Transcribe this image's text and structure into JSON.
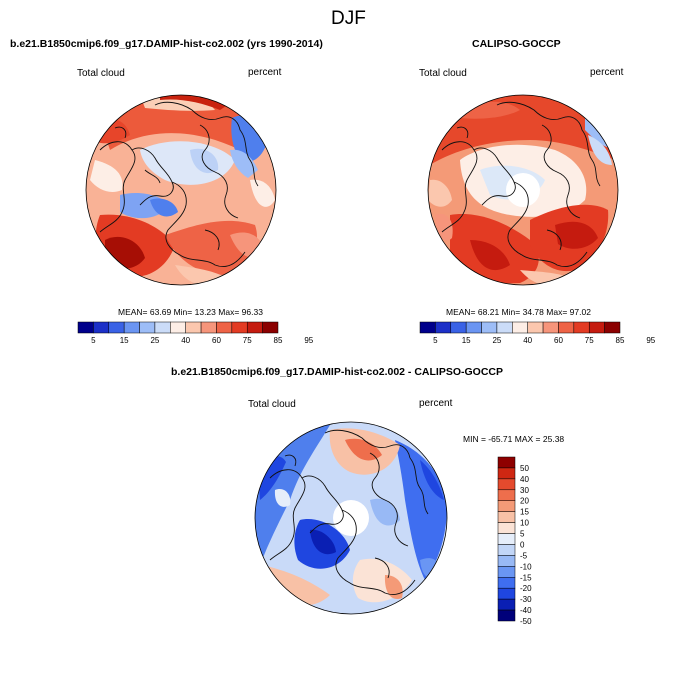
{
  "figure": {
    "title": "DJF"
  },
  "palettes": {
    "absolute": [
      "#00008b",
      "#1c30c8",
      "#3a62e6",
      "#6b95f2",
      "#9dbdf7",
      "#cbdcf8",
      "#fdeee6",
      "#fbc7ae",
      "#f6957b",
      "#ee6346",
      "#e33b23",
      "#c51b0f",
      "#8b0000"
    ],
    "difference": [
      "#00007a",
      "#0a1fb3",
      "#1f46e0",
      "#3f6ef0",
      "#6a96f3",
      "#98b9f5",
      "#c2d6f7",
      "#e6eefa",
      "#fbe3d6",
      "#f8c1a6",
      "#f49a77",
      "#ee6e4c",
      "#e44a2d",
      "#cf2712",
      "#8e0000"
    ]
  },
  "chart_data": [
    {
      "type": "heatmap",
      "projection": "north-polar-stereographic",
      "title": "b.e21.B1850cmip6.f09_g17.DAMIP-hist-co2.002 (yrs 1990-2014)",
      "left_label": "Total cloud",
      "right_label": "percent",
      "stats": {
        "mean_label": "MEAN=",
        "mean": "63.69",
        "min_label": "Min=",
        "min": "13.23",
        "max_label": "Max=",
        "max": "96.33"
      },
      "colorbar": {
        "orientation": "horizontal",
        "levels": [
          5,
          10,
          15,
          20,
          25,
          30,
          40,
          50,
          60,
          65,
          70,
          75,
          80,
          85,
          90,
          95
        ],
        "tick_labels": [
          "5",
          "15",
          "25",
          "40",
          "60",
          "75",
          "85",
          "95"
        ]
      }
    },
    {
      "type": "heatmap",
      "projection": "north-polar-stereographic",
      "title": "CALIPSO-GOCCP",
      "left_label": "Total cloud",
      "right_label": "percent",
      "stats": {
        "mean_label": "MEAN=",
        "mean": "68.21",
        "min_label": "Min=",
        "min": "34.78",
        "max_label": "Max=",
        "max": "97.02"
      },
      "colorbar": {
        "orientation": "horizontal",
        "levels": [
          5,
          10,
          15,
          20,
          25,
          30,
          40,
          50,
          60,
          65,
          70,
          75,
          80,
          85,
          90,
          95
        ],
        "tick_labels": [
          "5",
          "15",
          "25",
          "40",
          "60",
          "75",
          "85",
          "95"
        ]
      }
    },
    {
      "type": "heatmap",
      "projection": "north-polar-stereographic",
      "title": "b.e21.B1850cmip6.f09_g17.DAMIP-hist-co2.002 - CALIPSO-GOCCP",
      "left_label": "Total cloud",
      "right_label": "percent",
      "stats": {
        "min_label": "MIN =",
        "min": "-65.71",
        "max_label": "MAX =",
        "max": "25.38"
      },
      "colorbar": {
        "orientation": "vertical",
        "levels": [
          -50,
          -40,
          -30,
          -20,
          -15,
          -10,
          -5,
          0,
          5,
          10,
          15,
          20,
          30,
          40,
          50
        ],
        "tick_labels": [
          "50",
          "40",
          "30",
          "20",
          "15",
          "10",
          "5",
          "0",
          "-5",
          "-10",
          "-15",
          "-20",
          "-30",
          "-40",
          "-50"
        ]
      }
    }
  ]
}
